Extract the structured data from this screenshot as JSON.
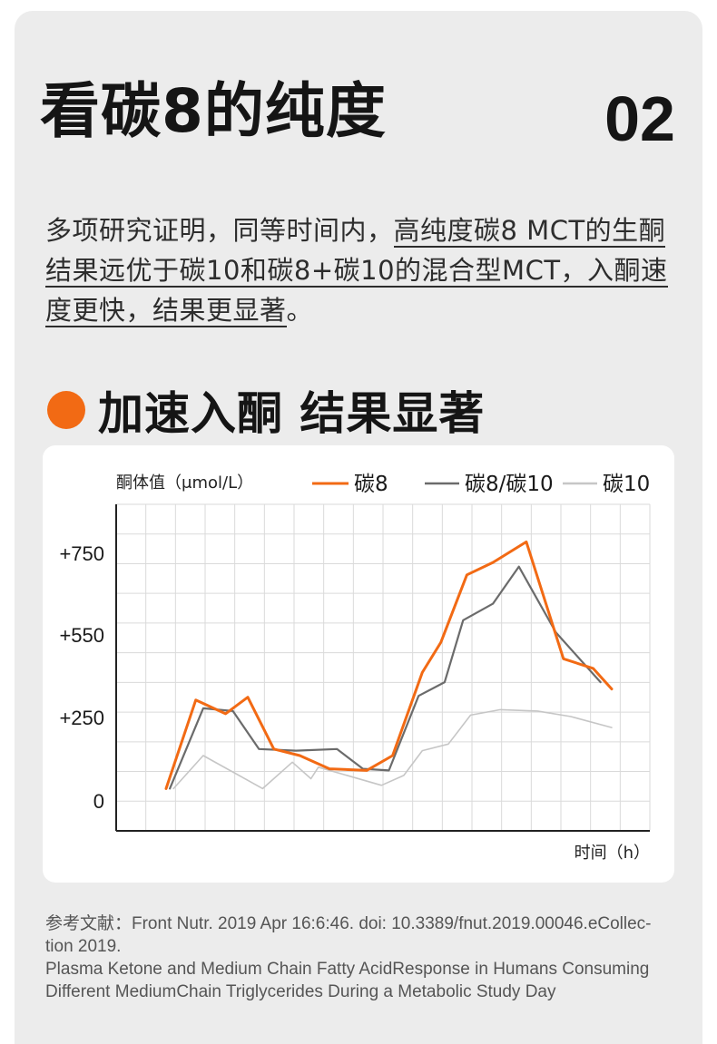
{
  "header": {
    "title": "看碳8的纯度",
    "number": "02"
  },
  "intro": {
    "part1": "多项研究证明，同等时间内，",
    "part2": "高纯度碳8 MCT的生酮结果远优于碳10和碳8+碳10的混合型MCT，入酮速度更快，结果更显著",
    "part3": "。"
  },
  "section": {
    "title": "加速入酮 结果显著",
    "accent": "#f26a14"
  },
  "chart_data": {
    "type": "line",
    "ylabel": "酮体值（μmol/L）",
    "xlabel": "时间（h）",
    "y_ticks": [
      "+750",
      "+550",
      "+250",
      "0"
    ],
    "legend_position": "top",
    "grid": true,
    "series": [
      {
        "name": "碳8",
        "color": "#f26a14",
        "points": [
          [
            0.0,
            40
          ],
          [
            0.8,
            320
          ],
          [
            1.6,
            270
          ],
          [
            2.2,
            330
          ],
          [
            2.9,
            160
          ],
          [
            3.6,
            140
          ],
          [
            4.4,
            100
          ],
          [
            5.4,
            95
          ],
          [
            6.1,
            140
          ],
          [
            6.9,
            420
          ],
          [
            7.4,
            530
          ],
          [
            8.1,
            700
          ],
          [
            8.8,
            730
          ],
          [
            9.7,
            780
          ],
          [
            10.7,
            470
          ],
          [
            11.5,
            435
          ],
          [
            12.0,
            360
          ]
        ]
      },
      {
        "name": "碳8/碳10",
        "color": "#6b6b6b",
        "points": [
          [
            0.1,
            40
          ],
          [
            1.0,
            290
          ],
          [
            1.8,
            280
          ],
          [
            2.5,
            160
          ],
          [
            3.5,
            155
          ],
          [
            4.6,
            160
          ],
          [
            5.3,
            100
          ],
          [
            6.0,
            95
          ],
          [
            6.8,
            335
          ],
          [
            7.5,
            385
          ],
          [
            8.0,
            590
          ],
          [
            8.8,
            630
          ],
          [
            9.5,
            720
          ],
          [
            10.5,
            560
          ],
          [
            11.7,
            385
          ]
        ]
      },
      {
        "name": "碳10",
        "color": "#c6c6c6",
        "points": [
          [
            0.2,
            40
          ],
          [
            1.0,
            140
          ],
          [
            2.6,
            40
          ],
          [
            3.4,
            120
          ],
          [
            3.9,
            70
          ],
          [
            4.1,
            105
          ],
          [
            5.8,
            50
          ],
          [
            6.4,
            80
          ],
          [
            6.9,
            155
          ],
          [
            7.6,
            175
          ],
          [
            8.2,
            265
          ],
          [
            9.0,
            285
          ],
          [
            10.0,
            280
          ],
          [
            10.9,
            260
          ],
          [
            12.0,
            225
          ]
        ]
      }
    ]
  },
  "reference": {
    "line1": "参考文献：Front Nutr. 2019 Apr 16:6:46. doi: 10.3389/fnut.2019.00046.eCollec-",
    "line2": "tion 2019.",
    "line3": "Plasma Ketone and Medium Chain Fatty AcidResponse in Humans Consuming",
    "line4": "Different MediumChain Triglycerides During a Metabolic Study Day"
  }
}
